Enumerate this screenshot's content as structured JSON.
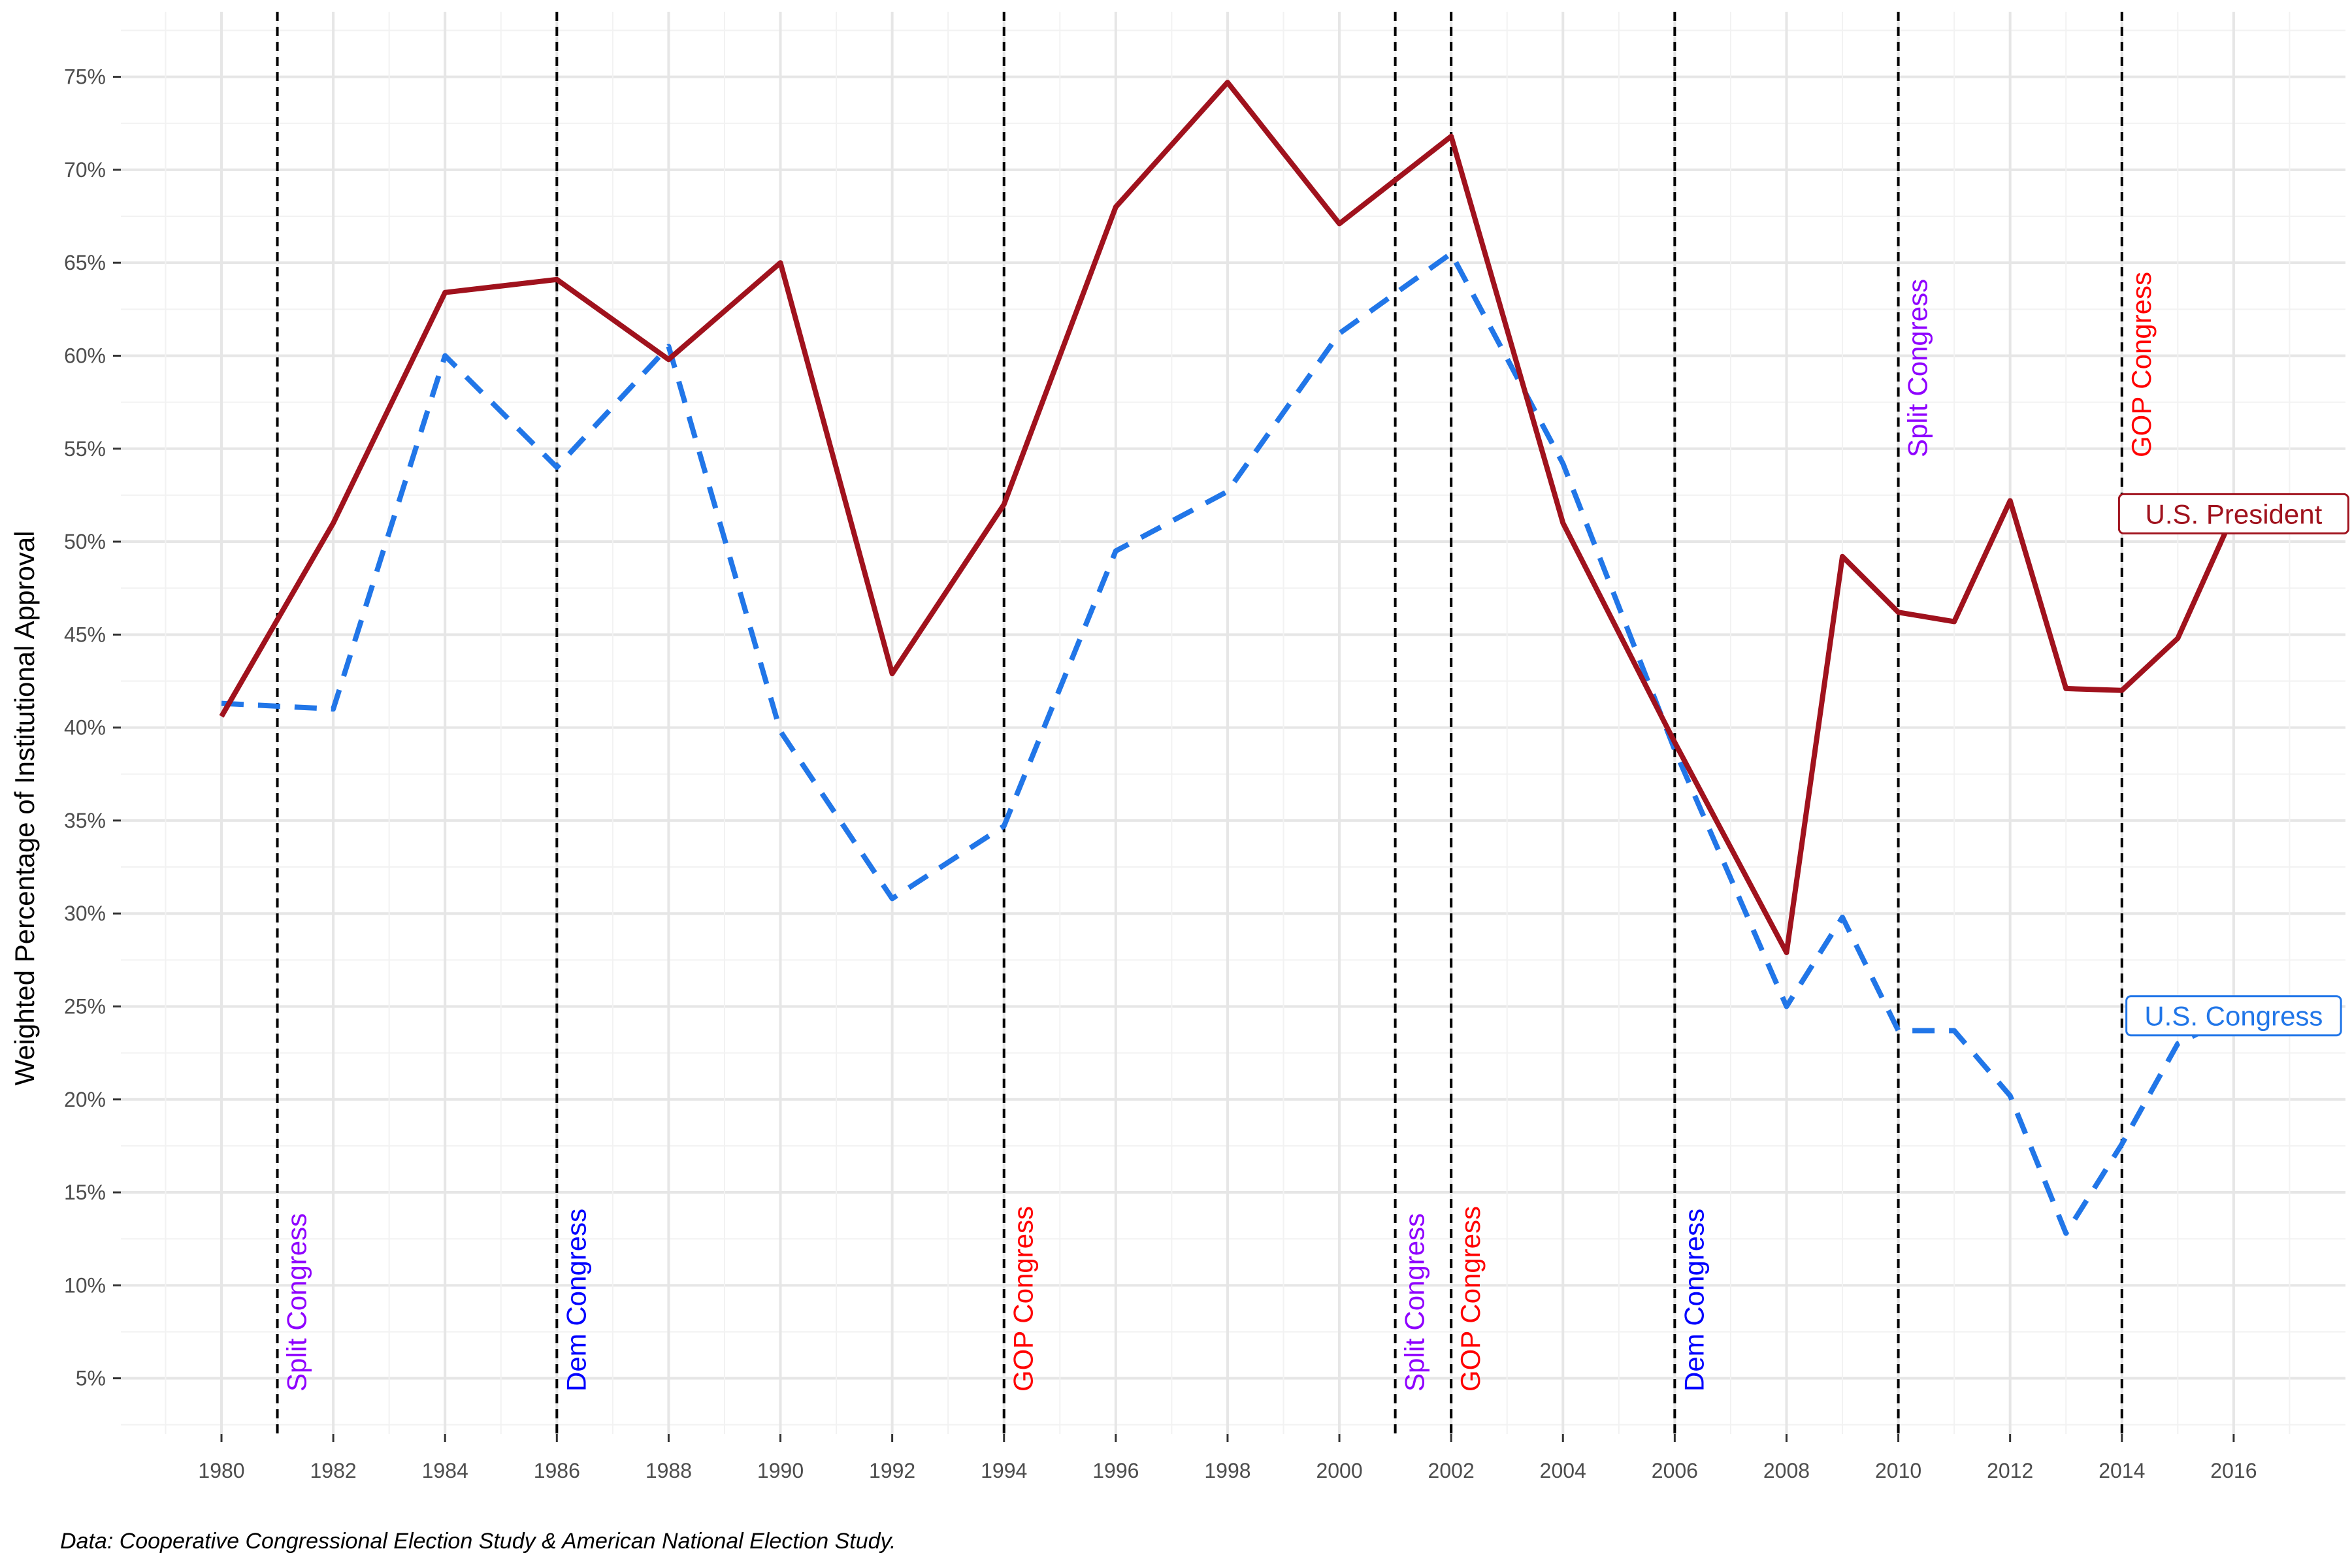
{
  "chart_data": {
    "type": "line",
    "xlabel": "",
    "ylabel": "Weighted Percentage of Institutional Approval",
    "caption": "Data: Cooperative Congressional Election Study & American National Election Study.",
    "xlim": [
      1978.2,
      2018.0
    ],
    "ylim": [
      2,
      78.5
    ],
    "x_ticks": [
      1980,
      1982,
      1984,
      1986,
      1988,
      1990,
      1992,
      1994,
      1996,
      1998,
      2000,
      2002,
      2004,
      2006,
      2008,
      2010,
      2012,
      2014,
      2016
    ],
    "y_ticks": [
      {
        "value": 5,
        "label": "5%"
      },
      {
        "value": 10,
        "label": "10%"
      },
      {
        "value": 15,
        "label": "15%"
      },
      {
        "value": 20,
        "label": "20%"
      },
      {
        "value": 25,
        "label": "25%"
      },
      {
        "value": 30,
        "label": "30%"
      },
      {
        "value": 35,
        "label": "35%"
      },
      {
        "value": 40,
        "label": "40%"
      },
      {
        "value": 45,
        "label": "45%"
      },
      {
        "value": 50,
        "label": "50%"
      },
      {
        "value": 55,
        "label": "55%"
      },
      {
        "value": 60,
        "label": "60%"
      },
      {
        "value": 65,
        "label": "65%"
      },
      {
        "value": 70,
        "label": "70%"
      },
      {
        "value": 75,
        "label": "75%"
      }
    ],
    "grid": true,
    "series": [
      {
        "name": "U.S. President",
        "color": "#a0121d",
        "style": "solid",
        "points": [
          [
            1980,
            40.6
          ],
          [
            1982,
            51.0
          ],
          [
            1984,
            63.4
          ],
          [
            1986,
            64.1
          ],
          [
            1988,
            59.8
          ],
          [
            1990,
            65.0
          ],
          [
            1992,
            42.9
          ],
          [
            1994,
            52.0
          ],
          [
            1996,
            68.0
          ],
          [
            1998,
            74.7
          ],
          [
            2000,
            67.1
          ],
          [
            2002,
            71.8
          ],
          [
            2004,
            51.0
          ],
          [
            2006,
            39.2
          ],
          [
            2008,
            27.9
          ],
          [
            2009,
            49.2
          ],
          [
            2010,
            46.2
          ],
          [
            2011,
            45.7
          ],
          [
            2012,
            52.2
          ],
          [
            2013,
            42.1
          ],
          [
            2014,
            42.0
          ],
          [
            2015,
            44.8
          ],
          [
            2016,
            51.5
          ]
        ]
      },
      {
        "name": "U.S. Congress",
        "color": "#2176e8",
        "style": "dashed",
        "points": [
          [
            1980,
            41.3
          ],
          [
            1982,
            41.0
          ],
          [
            1984,
            60.0
          ],
          [
            1986,
            54.0
          ],
          [
            1988,
            60.5
          ],
          [
            1990,
            39.8
          ],
          [
            1992,
            30.8
          ],
          [
            1994,
            34.7
          ],
          [
            1996,
            49.5
          ],
          [
            1998,
            52.7
          ],
          [
            2000,
            61.2
          ],
          [
            2002,
            65.5
          ],
          [
            2004,
            54.2
          ],
          [
            2006,
            38.8
          ],
          [
            2008,
            25.0
          ],
          [
            2009,
            29.8
          ],
          [
            2010,
            23.7
          ],
          [
            2011,
            23.7
          ],
          [
            2012,
            20.2
          ],
          [
            2013,
            12.8
          ],
          [
            2014,
            17.6
          ],
          [
            2015,
            23.0
          ],
          [
            2016,
            24.5
          ]
        ]
      }
    ],
    "events": [
      {
        "x": 1981,
        "label": "Split Congress",
        "color": "#8f00ff",
        "position": "bottom"
      },
      {
        "x": 1986,
        "label": "Dem Congress",
        "color": "#0000ff",
        "position": "bottom"
      },
      {
        "x": 1994,
        "label": "GOP Congress",
        "color": "#ff0000",
        "position": "bottom"
      },
      {
        "x": 2001,
        "label": "Split Congress",
        "color": "#8f00ff",
        "position": "bottom"
      },
      {
        "x": 2002,
        "label": "GOP Congress",
        "color": "#ff0000",
        "position": "bottom"
      },
      {
        "x": 2006,
        "label": "Dem Congress",
        "color": "#0000ff",
        "position": "bottom"
      },
      {
        "x": 2010,
        "label": "Split Congress",
        "color": "#8f00ff",
        "position": "top"
      },
      {
        "x": 2014,
        "label": "GOP Congress",
        "color": "#ff0000",
        "position": "top"
      }
    ],
    "series_labels": [
      {
        "text": "U.S. President",
        "x": 2016,
        "y": 51.5,
        "color": "#a0121d"
      },
      {
        "text": "U.S. Congress",
        "x": 2016,
        "y": 24.5,
        "color": "#2176e8"
      }
    ]
  }
}
